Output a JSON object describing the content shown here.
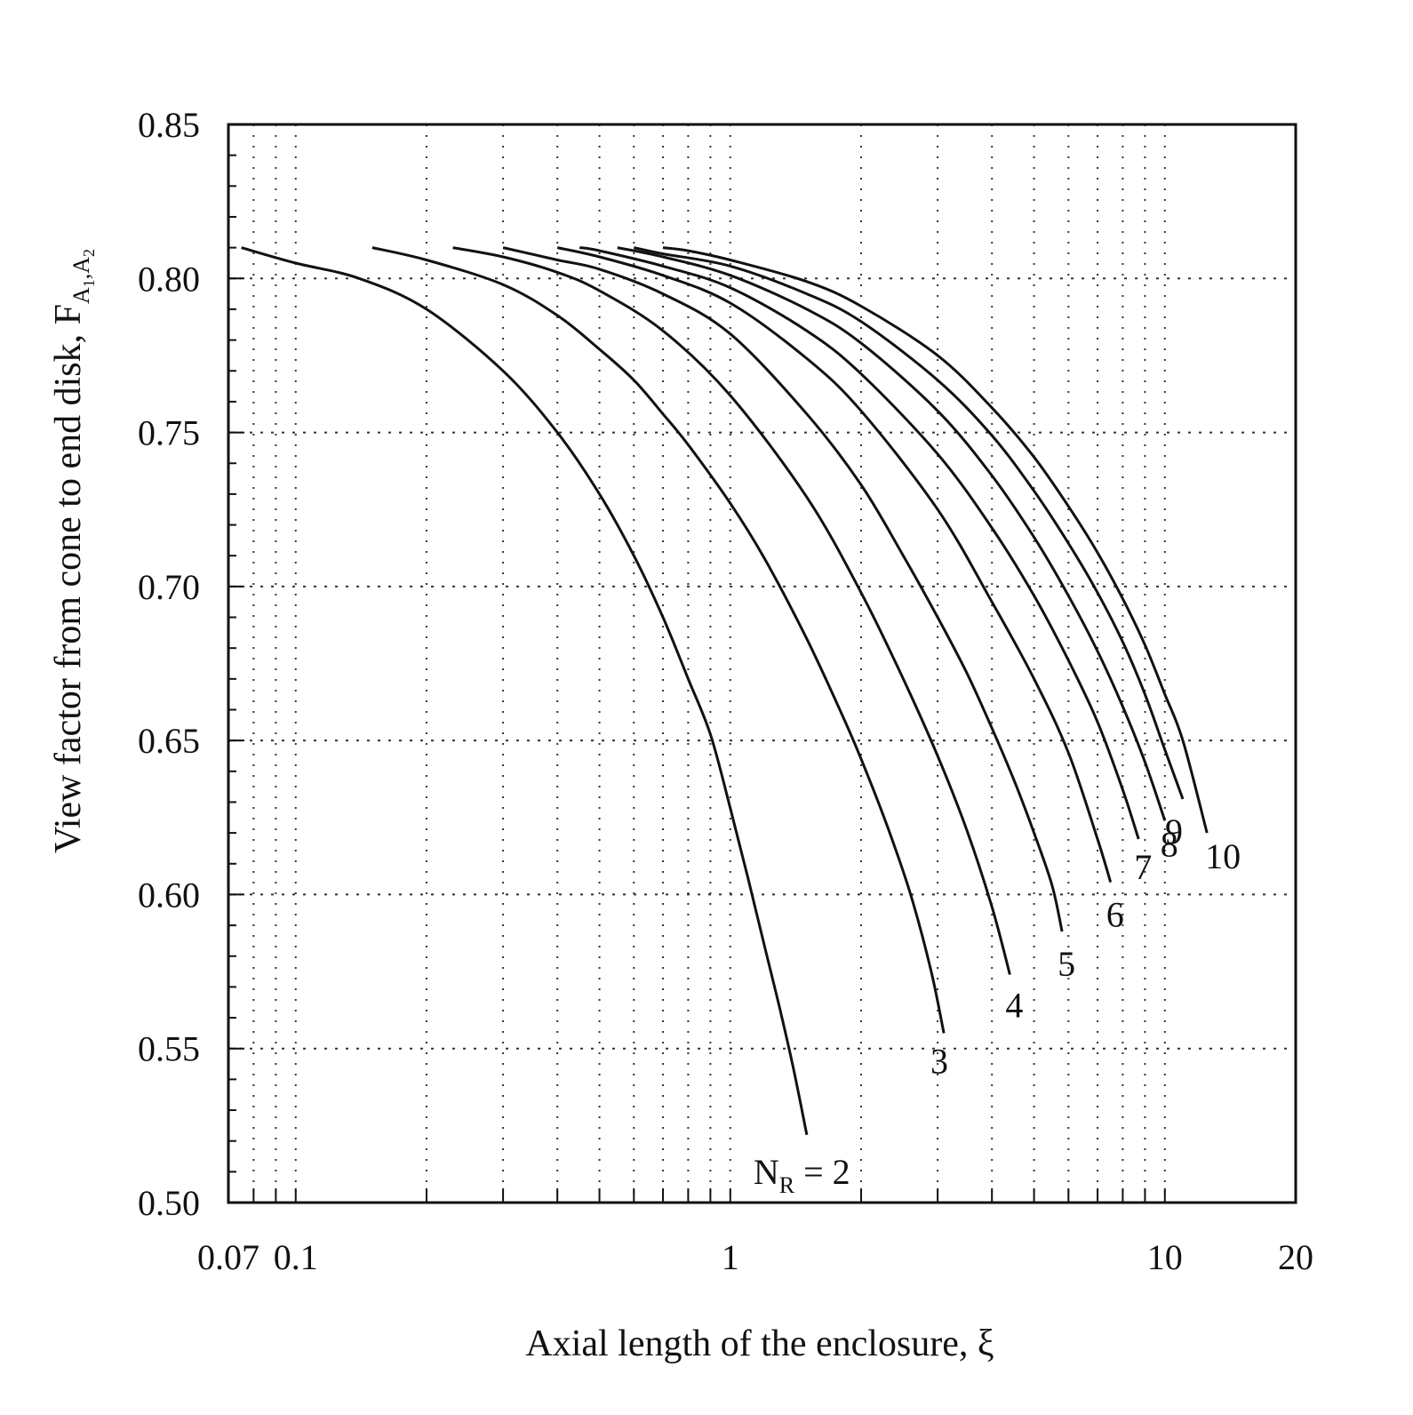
{
  "chart_data": {
    "type": "line",
    "title": "",
    "xlabel": "Axial length of the enclosure, ξ",
    "ylabel": {
      "main": "View factor from cone to end disk, F",
      "sub1": "A",
      "sub1_index": "1",
      "sep": ",",
      "sub2": "A",
      "sub2_index": "2"
    },
    "x_scale": "log",
    "xlim": [
      0.07,
      20
    ],
    "ylim": [
      0.5,
      0.85
    ],
    "x_ticks": [
      {
        "value": 0.07,
        "label": "0.07"
      },
      {
        "value": 0.1,
        "label": "0.1"
      },
      {
        "value": 1,
        "label": "1"
      },
      {
        "value": 10,
        "label": "10"
      },
      {
        "value": 20,
        "label": "20"
      }
    ],
    "y_ticks": [
      {
        "value": 0.5,
        "label": "0.50"
      },
      {
        "value": 0.55,
        "label": "0.55"
      },
      {
        "value": 0.6,
        "label": "0.60"
      },
      {
        "value": 0.65,
        "label": "0.65"
      },
      {
        "value": 0.7,
        "label": "0.70"
      },
      {
        "value": 0.75,
        "label": "0.75"
      },
      {
        "value": 0.8,
        "label": "0.80"
      },
      {
        "value": 0.85,
        "label": "0.85"
      }
    ],
    "grid": true,
    "series": [
      {
        "name": "N_R = 2",
        "label_prefix": "N",
        "label_sub": "R",
        "label_suffix": " = 2",
        "x": [
          0.075,
          0.1,
          0.14,
          0.2,
          0.3,
          0.4,
          0.5,
          0.6,
          0.7,
          0.8,
          0.9,
          1.0,
          1.1,
          1.2,
          1.3,
          1.4,
          1.5
        ],
        "y": [
          0.81,
          0.805,
          0.8,
          0.79,
          0.77,
          0.75,
          0.73,
          0.71,
          0.69,
          0.67,
          0.652,
          0.628,
          0.605,
          0.583,
          0.563,
          0.543,
          0.522
        ]
      },
      {
        "name": "3",
        "x": [
          0.15,
          0.2,
          0.3,
          0.4,
          0.5,
          0.6,
          0.7,
          0.8,
          1.0,
          1.2,
          1.5,
          1.8,
          2.0,
          2.3,
          2.6,
          2.9,
          3.1
        ],
        "y": [
          0.81,
          0.806,
          0.798,
          0.788,
          0.777,
          0.767,
          0.756,
          0.746,
          0.727,
          0.709,
          0.683,
          0.659,
          0.644,
          0.622,
          0.6,
          0.575,
          0.555
        ]
      },
      {
        "name": "4",
        "x": [
          0.23,
          0.3,
          0.4,
          0.5,
          0.7,
          1.0,
          1.5,
          2.0,
          2.5,
          3.0,
          3.5,
          4.0,
          4.4
        ],
        "y": [
          0.81,
          0.807,
          0.802,
          0.796,
          0.783,
          0.762,
          0.729,
          0.698,
          0.67,
          0.645,
          0.621,
          0.596,
          0.574
        ]
      },
      {
        "name": "5",
        "x": [
          0.3,
          0.4,
          0.5,
          0.7,
          1.0,
          1.5,
          2.0,
          2.5,
          3.0,
          3.5,
          4.0,
          4.5,
          5.0,
          5.5,
          5.8
        ],
        "y": [
          0.81,
          0.806,
          0.803,
          0.795,
          0.782,
          0.756,
          0.733,
          0.71,
          0.69,
          0.672,
          0.654,
          0.637,
          0.62,
          0.603,
          0.588
        ]
      },
      {
        "name": "6",
        "x": [
          0.4,
          0.5,
          0.7,
          1.0,
          1.5,
          2.0,
          3.0,
          4.0,
          5.0,
          6.0,
          7.0,
          7.5
        ],
        "y": [
          0.81,
          0.807,
          0.801,
          0.792,
          0.774,
          0.757,
          0.725,
          0.695,
          0.67,
          0.646,
          0.618,
          0.604
        ]
      },
      {
        "name": "7",
        "x": [
          0.45,
          0.5,
          0.7,
          1.0,
          1.5,
          2.0,
          3.0,
          4.0,
          5.0,
          6.0,
          7.0,
          8.0,
          8.7
        ],
        "y": [
          0.81,
          0.809,
          0.804,
          0.797,
          0.783,
          0.769,
          0.743,
          0.719,
          0.697,
          0.676,
          0.656,
          0.634,
          0.618
        ]
      },
      {
        "name": "8",
        "x": [
          0.55,
          0.7,
          1.0,
          1.5,
          2.0,
          3.0,
          4.0,
          5.0,
          6.0,
          7.0,
          8.0,
          9.0,
          10.0
        ],
        "y": [
          0.81,
          0.807,
          0.801,
          0.79,
          0.779,
          0.757,
          0.736,
          0.716,
          0.697,
          0.679,
          0.661,
          0.643,
          0.624
        ]
      },
      {
        "name": "9",
        "x": [
          0.6,
          0.7,
          1.0,
          1.5,
          2.0,
          3.0,
          4.0,
          5.0,
          6.0,
          7.0,
          8.0,
          9.0,
          10.0,
          11.0
        ],
        "y": [
          0.81,
          0.808,
          0.804,
          0.795,
          0.786,
          0.767,
          0.749,
          0.731,
          0.714,
          0.698,
          0.682,
          0.665,
          0.647,
          0.631
        ]
      },
      {
        "name": "10",
        "x": [
          0.7,
          0.8,
          1.0,
          1.5,
          2.0,
          3.0,
          4.0,
          5.0,
          6.0,
          7.0,
          8.0,
          9.0,
          10.0,
          11.0,
          12.5
        ],
        "y": [
          0.81,
          0.809,
          0.806,
          0.799,
          0.791,
          0.775,
          0.758,
          0.742,
          0.726,
          0.711,
          0.696,
          0.681,
          0.665,
          0.65,
          0.62
        ]
      }
    ]
  }
}
